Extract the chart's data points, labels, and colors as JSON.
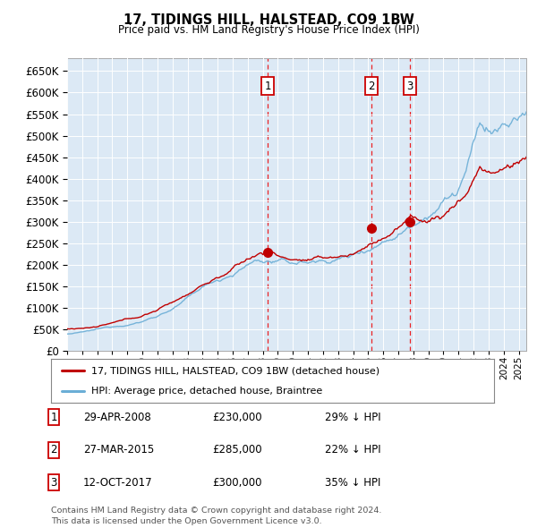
{
  "title": "17, TIDINGS HILL, HALSTEAD, CO9 1BW",
  "subtitle": "Price paid vs. HM Land Registry's House Price Index (HPI)",
  "background_color": "#dce9f5",
  "ylim": [
    0,
    680000
  ],
  "yticks": [
    0,
    50000,
    100000,
    150000,
    200000,
    250000,
    300000,
    350000,
    400000,
    450000,
    500000,
    550000,
    600000,
    650000
  ],
  "sale_dates": [
    2008.33,
    2015.22,
    2017.79
  ],
  "sale_prices": [
    230000,
    285000,
    300000
  ],
  "sale_labels": [
    "1",
    "2",
    "3"
  ],
  "hpi_line_color": "#6baed6",
  "price_line_color": "#c00000",
  "vline_color": "#ee0000",
  "legend_label_property": "17, TIDINGS HILL, HALSTEAD, CO9 1BW (detached house)",
  "legend_label_hpi": "HPI: Average price, detached house, Braintree",
  "table_rows": [
    {
      "num": "1",
      "date": "29-APR-2008",
      "price": "£230,000",
      "pct": "29% ↓ HPI"
    },
    {
      "num": "2",
      "date": "27-MAR-2015",
      "price": "£285,000",
      "pct": "22% ↓ HPI"
    },
    {
      "num": "3",
      "date": "12-OCT-2017",
      "price": "£300,000",
      "pct": "35% ↓ HPI"
    }
  ],
  "footer": "Contains HM Land Registry data © Crown copyright and database right 2024.\nThis data is licensed under the Open Government Licence v3.0.",
  "xmin": 1995.0,
  "xmax": 2025.5
}
